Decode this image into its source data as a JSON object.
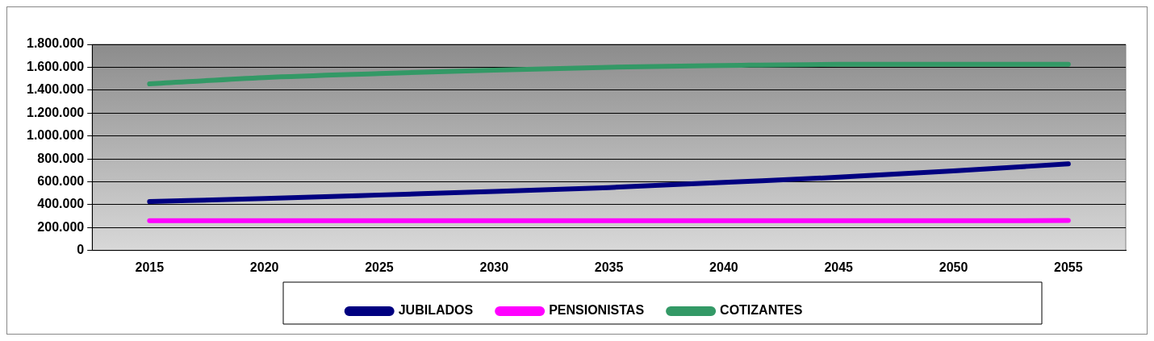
{
  "chart_data": {
    "type": "line",
    "categories": [
      "2015",
      "2020",
      "2025",
      "2030",
      "2035",
      "2040",
      "2045",
      "2050",
      "2055"
    ],
    "series": [
      {
        "name": "JUBILADOS",
        "color": "#000080",
        "values": [
          427000,
          455000,
          485000,
          515000,
          550000,
          595000,
          640000,
          695000,
          757000
        ]
      },
      {
        "name": "PENSIONISTAS",
        "color": "#ff00ff",
        "values": [
          260000,
          260000,
          260000,
          260000,
          260000,
          260000,
          260000,
          260000,
          262000
        ]
      },
      {
        "name": "COTIZANTES",
        "color": "#339966",
        "values": [
          1455000,
          1510000,
          1545000,
          1575000,
          1600000,
          1615000,
          1625000,
          1625000,
          1625000
        ]
      }
    ],
    "ylim": [
      0,
      1800000
    ],
    "yticks": [
      {
        "value": 0,
        "label": "0"
      },
      {
        "value": 200000,
        "label": "200.000"
      },
      {
        "value": 400000,
        "label": "400.000"
      },
      {
        "value": 600000,
        "label": "600.000"
      },
      {
        "value": 800000,
        "label": "800.000"
      },
      {
        "value": 1000000,
        "label": "1.000.000"
      },
      {
        "value": 1200000,
        "label": "1.200.000"
      },
      {
        "value": 1400000,
        "label": "1.400.000"
      },
      {
        "value": 1600000,
        "label": "1.600.000"
      },
      {
        "value": 1800000,
        "label": "1.800.000"
      }
    ],
    "grid": "y",
    "legend": "bottom",
    "marker": "none",
    "line_style": "solid"
  }
}
